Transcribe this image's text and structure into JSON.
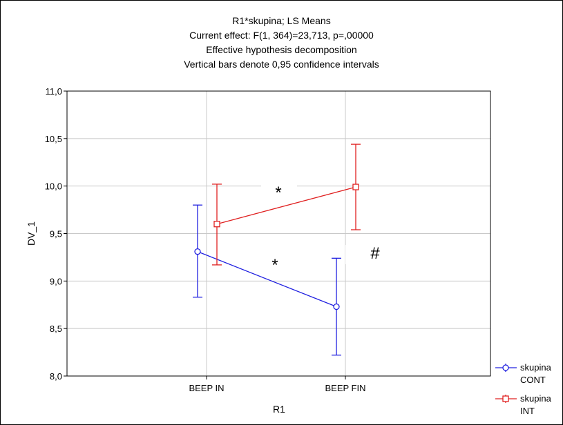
{
  "chart_data": {
    "type": "line",
    "title": "R1*skupina; LS Means",
    "subtitles": [
      "Current effect: F(1, 364)=23,713, p=,00000",
      "Effective hypothesis decomposition",
      "Vertical bars denote 0,95 confidence intervals"
    ],
    "xlabel": "R1",
    "ylabel": "DV_1",
    "categories": [
      "BEEP IN",
      "BEEP FIN"
    ],
    "ylim": [
      8.0,
      11.0
    ],
    "yticks": [
      "8,0",
      "8,5",
      "9,0",
      "9,5",
      "10,0",
      "10,5",
      "11,0"
    ],
    "grid": true,
    "legend": "bottom-right",
    "series": [
      {
        "name": "skupina CONT",
        "color": "#2020e0",
        "marker": "circle",
        "values": [
          9.31,
          8.73
        ],
        "ci_low": [
          8.83,
          8.22
        ],
        "ci_high": [
          9.8,
          9.24
        ]
      },
      {
        "name": "skupina INT",
        "color": "#e02020",
        "marker": "square",
        "values": [
          9.6,
          9.99
        ],
        "ci_low": [
          9.17,
          9.54
        ],
        "ci_high": [
          10.02,
          10.44
        ]
      }
    ],
    "annotations": [
      "*",
      "*",
      "#"
    ],
    "legend_labels": [
      [
        "skupina",
        "CONT"
      ],
      [
        "skupina",
        "INT"
      ]
    ]
  }
}
